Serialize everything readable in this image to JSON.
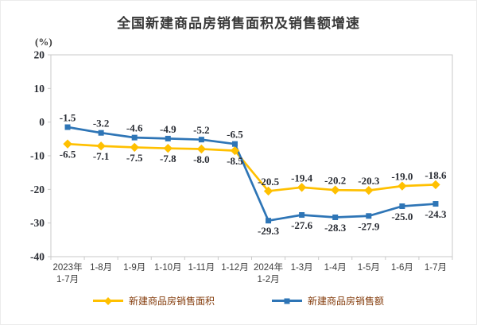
{
  "title": "全国新建商品房销售面积及销售额增速",
  "axis_unit_label": "(%)",
  "colors": {
    "series_area": "#FFC000",
    "series_amount": "#2E75B6",
    "legend_text": "#843C0C",
    "axis_line": "#C9C9C9",
    "data_label": "#2A2D34",
    "title_text": "#383838"
  },
  "chart_data": {
    "type": "line",
    "title": "全国新建商品房销售面积及销售额增速",
    "ylabel": "(%)",
    "ylim": [
      -40,
      20
    ],
    "yticks": [
      20,
      10,
      0,
      -10,
      -20,
      -30,
      -40
    ],
    "grid": false,
    "legend_position": "bottom",
    "categories": [
      "2023年\n1-7月",
      "1-8月",
      "1-9月",
      "1-10月",
      "1-11月",
      "1-12月",
      "2024年\n1-2月",
      "1-3月",
      "1-4月",
      "1-5月",
      "1-6月",
      "1-7月"
    ],
    "series": [
      {
        "name": "新建商品房销售面积",
        "marker": "diamond",
        "color": "#FFC000",
        "values": [
          -6.5,
          -7.1,
          -7.5,
          -7.8,
          -8.0,
          -8.5,
          -20.5,
          -19.4,
          -20.2,
          -20.3,
          -19.0,
          -18.6
        ],
        "label_sides": [
          "below",
          "below",
          "below",
          "below",
          "below",
          "below",
          "above",
          "above",
          "above",
          "above",
          "above",
          "above"
        ]
      },
      {
        "name": "新建商品房销售额",
        "marker": "square",
        "color": "#2E75B6",
        "values": [
          -1.5,
          -3.2,
          -4.6,
          -4.9,
          -5.2,
          -6.5,
          -29.3,
          -27.6,
          -28.3,
          -27.9,
          -25.0,
          -24.3
        ],
        "label_sides": [
          "above",
          "above",
          "above",
          "above",
          "above",
          "above",
          "below",
          "below",
          "below",
          "below",
          "below",
          "below"
        ]
      }
    ]
  }
}
